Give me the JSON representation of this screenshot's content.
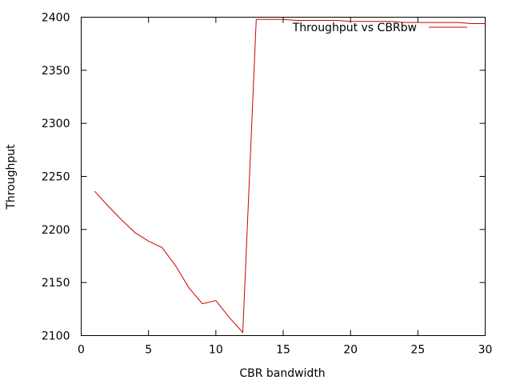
{
  "chart_data": {
    "type": "line",
    "title": "",
    "xlabel": "CBR bandwidth",
    "ylabel": "Throughput",
    "xlim": [
      0,
      30
    ],
    "ylim": [
      2100,
      2400
    ],
    "xticks": [
      0,
      5,
      10,
      15,
      20,
      25,
      30
    ],
    "yticks": [
      2100,
      2150,
      2200,
      2250,
      2300,
      2350,
      2400
    ],
    "grid": false,
    "legend_position": "top-right",
    "series": [
      {
        "name": "Throughput vs CBRbw",
        "color": "#cc0000",
        "x": [
          1,
          2,
          3,
          4,
          5,
          6,
          7,
          8,
          9,
          10,
          11,
          12,
          13,
          14,
          15,
          16,
          17,
          18,
          19,
          20,
          21,
          22,
          23,
          24,
          25,
          26,
          27,
          28,
          29,
          30
        ],
        "y": [
          2236,
          2222,
          2209,
          2197,
          2189,
          2183,
          2166,
          2145,
          2130,
          2133,
          2117,
          2103,
          2398,
          2398,
          2398,
          2397,
          2397,
          2397,
          2397,
          2396,
          2396,
          2396,
          2396,
          2395,
          2395,
          2395,
          2395,
          2395,
          2394,
          2394
        ]
      }
    ]
  }
}
